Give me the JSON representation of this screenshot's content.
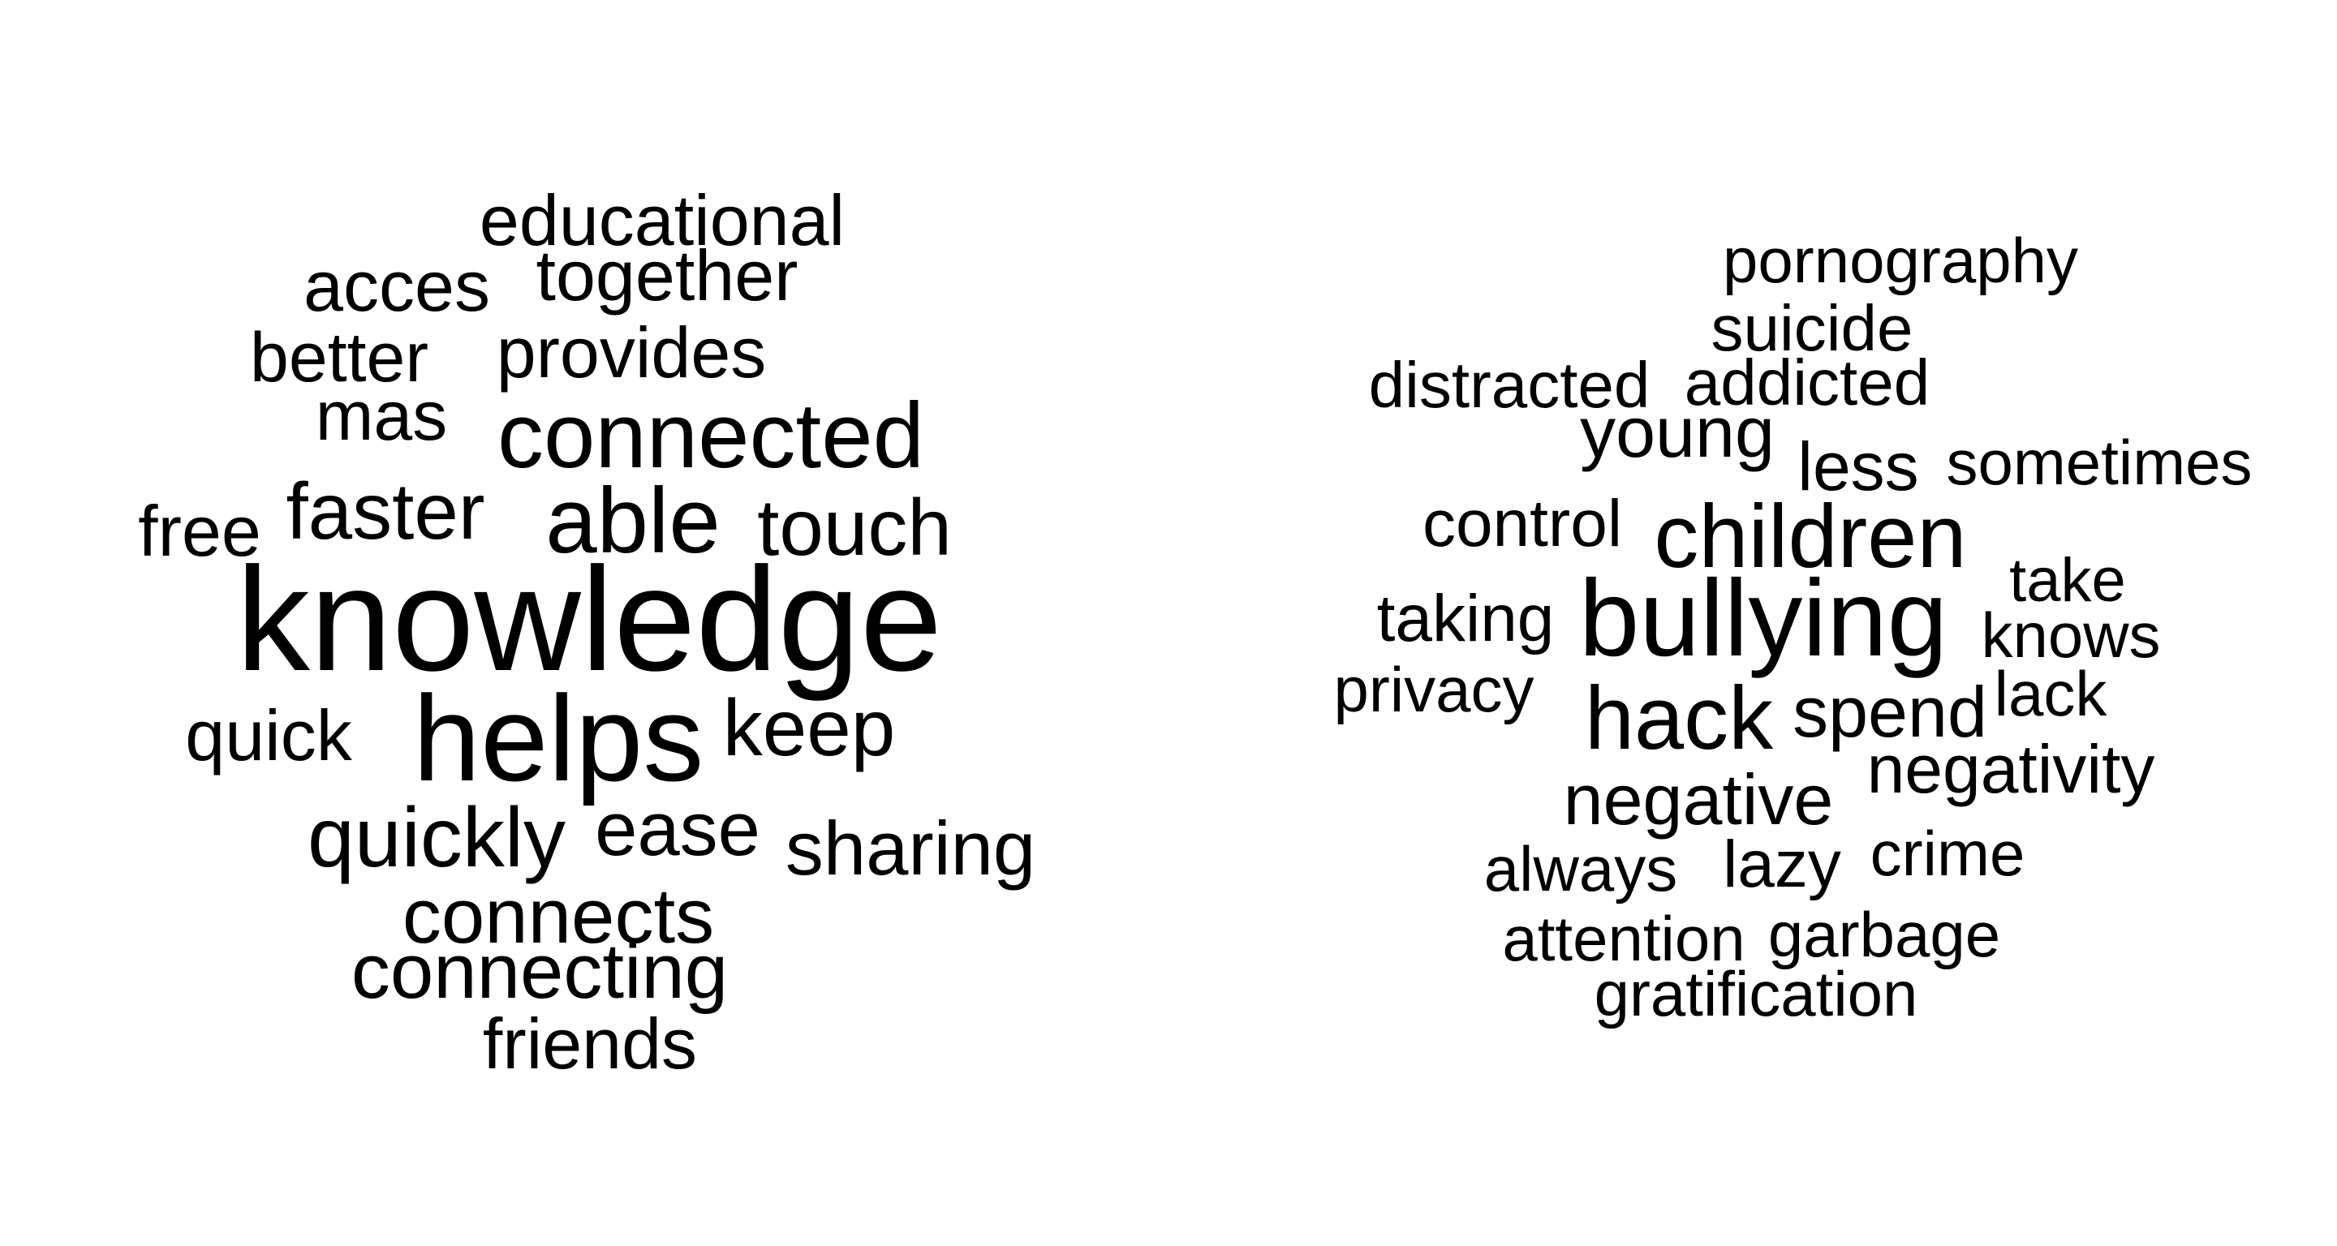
{
  "clouds": [
    {
      "words": [
        "educational",
        "acces",
        "together",
        "better",
        "provides",
        "mas",
        "connected",
        "faster",
        "able",
        "free",
        "touch",
        "knowledge",
        "quick",
        "helps",
        "keep",
        "quickly",
        "ease",
        "sharing",
        "connects",
        "connecting",
        "friends"
      ]
    },
    {
      "words": [
        "pornography",
        "suicide",
        "distracted",
        "addicted",
        "young",
        "less",
        "sometimes",
        "control",
        "children",
        "take",
        "taking",
        "bullying",
        "knows",
        "privacy",
        "hack",
        "spend",
        "lack",
        "negativity",
        "negative",
        "always",
        "lazy",
        "crime",
        "attention",
        "garbage",
        "gratification"
      ]
    }
  ],
  "colors": {
    "text": "#000000",
    "background": "#ffffff"
  }
}
